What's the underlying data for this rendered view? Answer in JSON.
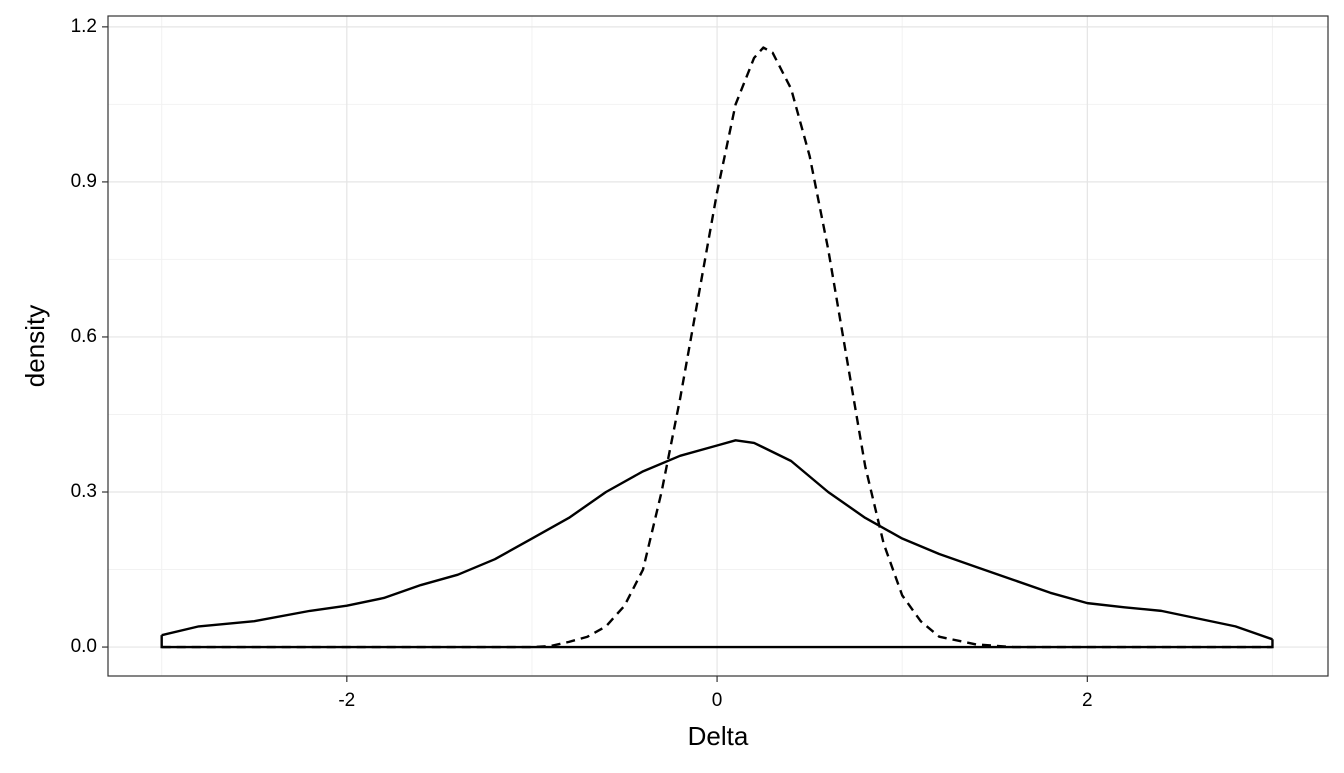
{
  "chart_data": {
    "type": "density",
    "x_label": "Delta",
    "y_label": "density",
    "xlim": [
      -3.29,
      3.3
    ],
    "ylim": [
      -0.056,
      1.221
    ],
    "xticks": [
      -2,
      0,
      2
    ],
    "yticks": [
      {
        "value": 0,
        "label": "0.0"
      },
      0.3,
      0.6,
      0.9,
      1.2
    ],
    "grid": true,
    "minor_grid": true,
    "series": [
      {
        "color": "#000000",
        "line_style": "solid",
        "closed": true,
        "x": [
          -3,
          -2.8,
          -2.5,
          -2.2,
          -2,
          -1.8,
          -1.6,
          -1.4,
          -1.2,
          -1,
          -0.8,
          -0.6,
          -0.4,
          -0.2,
          0,
          0.1,
          0.2,
          0.4,
          0.6,
          0.8,
          1,
          1.2,
          1.4,
          1.6,
          1.8,
          2,
          2.2,
          2.4,
          2.6,
          2.8,
          3
        ],
        "values": [
          0.023,
          0.04,
          0.05,
          0.07,
          0.08,
          0.095,
          0.12,
          0.14,
          0.17,
          0.21,
          0.25,
          0.3,
          0.34,
          0.37,
          0.39,
          0.4,
          0.395,
          0.36,
          0.3,
          0.25,
          0.21,
          0.18,
          0.155,
          0.13,
          0.105,
          0.085,
          0.077,
          0.07,
          0.055,
          0.04,
          0.015
        ]
      },
      {
        "color": "#000000",
        "line_style": "dashed",
        "closed": false,
        "x": [
          -3,
          -1,
          -0.9,
          -0.8,
          -0.7,
          -0.6,
          -0.5,
          -0.4,
          -0.3,
          -0.2,
          -0.1,
          0,
          0.1,
          0.2,
          0.25,
          0.3,
          0.4,
          0.5,
          0.6,
          0.7,
          0.8,
          0.9,
          1,
          1.1,
          1.2,
          1.4,
          1.6,
          3
        ],
        "values": [
          0,
          0,
          0.002,
          0.01,
          0.02,
          0.04,
          0.08,
          0.15,
          0.3,
          0.48,
          0.68,
          0.88,
          1.05,
          1.14,
          1.16,
          1.15,
          1.08,
          0.95,
          0.77,
          0.56,
          0.35,
          0.2,
          0.1,
          0.05,
          0.02,
          0.005,
          0,
          0
        ]
      }
    ]
  }
}
